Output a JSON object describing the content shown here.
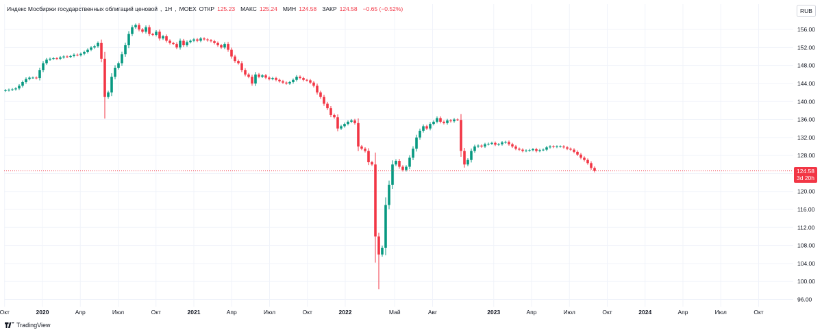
{
  "header": {
    "title": "Индекс Мосбиржи государственных облигаций ценовой",
    "interval": "1Н",
    "exchange": "MOEX",
    "open_label": "ОТКР",
    "open_value": "125.23",
    "high_label": "МАКС",
    "high_value": "125.24",
    "low_label": "МИН",
    "low_value": "124.58",
    "close_label": "ЗАКР",
    "close_value": "124.58",
    "change": "−0.65 (−0.52%)"
  },
  "currency": "RUB",
  "last_price": {
    "value": "124.58",
    "countdown": "3d 20h"
  },
  "brand": "TradingView",
  "colors": {
    "up": "#089981",
    "down": "#f23645",
    "grid": "#f0f3fa",
    "text": "#131722"
  },
  "chart_data": {
    "type": "candlestick",
    "title": "Индекс Мосбиржи государственных облигаций ценовой",
    "interval": "1 week",
    "ylim": [
      94.4,
      158.6
    ],
    "y_ticks": [
      "96.00",
      "100.00",
      "104.00",
      "108.00",
      "112.00",
      "116.00",
      "120.00",
      "124.00",
      "128.00",
      "132.00",
      "136.00",
      "140.00",
      "144.00",
      "148.00",
      "152.00",
      "156.00"
    ],
    "x_ticks": [
      {
        "label": "Окт",
        "bold": false
      },
      {
        "label": "2020",
        "bold": true
      },
      {
        "label": "Апр",
        "bold": false
      },
      {
        "label": "Июл",
        "bold": false
      },
      {
        "label": "Окт",
        "bold": false
      },
      {
        "label": "2021",
        "bold": true
      },
      {
        "label": "Апр",
        "bold": false
      },
      {
        "label": "Июл",
        "bold": false
      },
      {
        "label": "Окт",
        "bold": false
      },
      {
        "label": "2022",
        "bold": true
      },
      {
        "label": "Май",
        "bold": false
      },
      {
        "label": "Авг",
        "bold": false
      },
      {
        "label": "2023",
        "bold": true
      },
      {
        "label": "Апр",
        "bold": false
      },
      {
        "label": "Июл",
        "bold": false
      },
      {
        "label": "Окт",
        "bold": false
      },
      {
        "label": "2024",
        "bold": true
      },
      {
        "label": "Апр",
        "bold": false
      },
      {
        "label": "Июл",
        "bold": false
      },
      {
        "label": "Окт",
        "bold": false
      }
    ],
    "x_tick_weeks": [
      0,
      13,
      26,
      39,
      52,
      65,
      78,
      91,
      104,
      117,
      134,
      147,
      168,
      181,
      194,
      207,
      220,
      233,
      246,
      259
    ],
    "last_value": 124.58,
    "candles_close": [
      142.5,
      142.6,
      142.7,
      142.9,
      143.5,
      144.3,
      145.0,
      145.3,
      145.3,
      145.2,
      147.0,
      148.5,
      149.3,
      149.5,
      149.6,
      149.5,
      149.8,
      150.0,
      149.9,
      150.1,
      150.4,
      150.3,
      150.6,
      151.0,
      151.5,
      152.0,
      152.3,
      153.0,
      149.5,
      141.0,
      142.0,
      145.5,
      147.5,
      148.5,
      150.5,
      152.5,
      155.0,
      156.5,
      157.0,
      156.0,
      155.5,
      156.5,
      155.0,
      154.8,
      155.5,
      154.0,
      154.5,
      153.5,
      153.0,
      152.8,
      152.0,
      153.5,
      152.5,
      153.2,
      153.5,
      153.8,
      153.5,
      154.0,
      153.8,
      153.6,
      153.4,
      153.0,
      152.5,
      152.0,
      152.8,
      151.5,
      150.0,
      149.0,
      148.5,
      147.0,
      146.0,
      145.5,
      144.0,
      146.0,
      145.5,
      145.8,
      145.3,
      145.0,
      145.2,
      144.8,
      144.5,
      144.2,
      144.0,
      144.3,
      144.8,
      145.5,
      145.2,
      144.8,
      144.7,
      144.2,
      143.5,
      142.0,
      141.0,
      139.5,
      138.5,
      137.0,
      136.5,
      134.0,
      134.5,
      135.0,
      135.5,
      135.8,
      135.2,
      130.0,
      129.5,
      129.0,
      126.5,
      126.0,
      110.0,
      106.0,
      107.5,
      117.0,
      121.5,
      126.0,
      126.8,
      125.5,
      124.8,
      125.5,
      127.5,
      129.5,
      132.0,
      133.5,
      134.5,
      134.0,
      135.0,
      135.5,
      136.3,
      135.5,
      135.2,
      135.8,
      135.6,
      136.0,
      135.9,
      129.0,
      126.0,
      127.0,
      129.0,
      130.0,
      130.2,
      130.0,
      130.5,
      130.6,
      130.8,
      130.4,
      130.5,
      130.9,
      131.0,
      130.5,
      130.0,
      129.5,
      129.3,
      129.0,
      129.1,
      129.2,
      129.4,
      129.0,
      129.2,
      129.3,
      129.8,
      130.0,
      129.9,
      130.0,
      130.0,
      129.8,
      129.5,
      129.3,
      128.8,
      128.2,
      127.5,
      127.0,
      126.3,
      125.23,
      124.58
    ]
  }
}
